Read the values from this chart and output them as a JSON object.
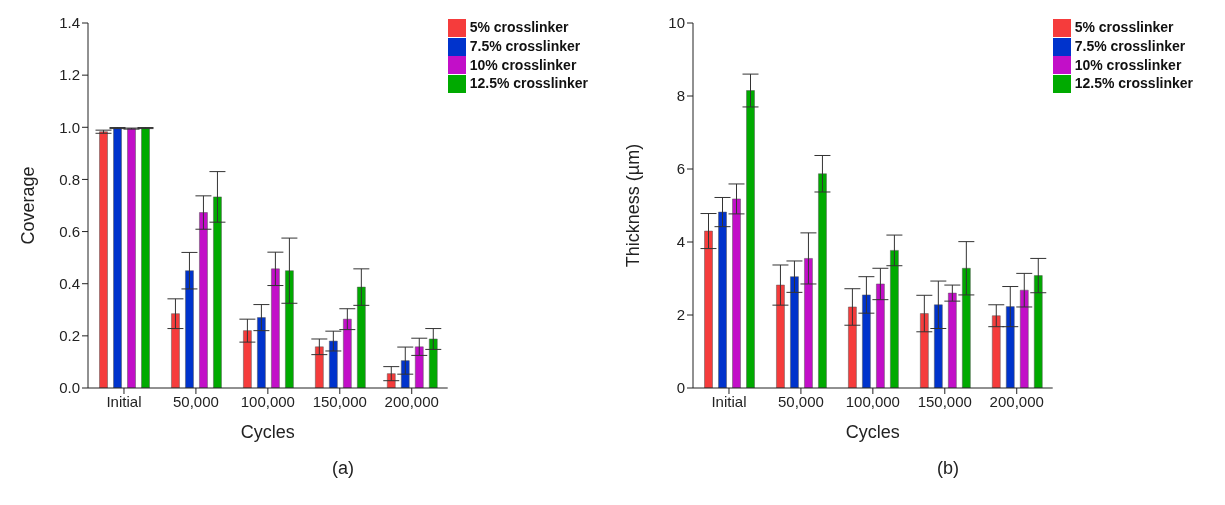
{
  "chart_data": [
    {
      "type": "bar",
      "xlabel": "Cycles",
      "ylabel": "Coverage",
      "annotations": [
        "(a)"
      ],
      "legend": "top right",
      "categories": [
        "Initial",
        "50,000",
        "100,000",
        "150,000",
        "200,000"
      ],
      "ylim": [
        0,
        1.4
      ],
      "yticks": [
        {
          "value": 0,
          "label": "0.0"
        },
        {
          "value": 0.2,
          "label": "0.2"
        },
        {
          "value": 0.4,
          "label": "0.4"
        },
        {
          "value": 0.6,
          "label": "0.6"
        },
        {
          "value": 0.8,
          "label": "0.8"
        },
        {
          "value": 1,
          "label": "1.0"
        },
        {
          "value": 1.2,
          "label": "1.2"
        },
        {
          "value": 1.4,
          "label": "1.4"
        }
      ],
      "series": [
        {
          "name": "5% crosslinker",
          "color": "#f53c3c",
          "values": [
            0.983,
            0.285,
            0.22,
            0.158,
            0.055
          ],
          "errors": [
            0.006,
            0.057,
            0.044,
            0.03,
            0.027
          ]
        },
        {
          "name": "7.5% crosslinker",
          "color": "#0033cc",
          "values": [
            0.997,
            0.45,
            0.27,
            0.18,
            0.105
          ],
          "errors": [
            0.002,
            0.07,
            0.05,
            0.038,
            0.052
          ]
        },
        {
          "name": "10% crosslinker",
          "color": "#c20fc8",
          "values": [
            0.995,
            0.673,
            0.457,
            0.264,
            0.158
          ],
          "errors": [
            0.002,
            0.064,
            0.064,
            0.04,
            0.033
          ]
        },
        {
          "name": "12.5% crosslinker",
          "color": "#00aa00",
          "values": [
            0.997,
            0.733,
            0.45,
            0.387,
            0.188
          ],
          "errors": [
            0.002,
            0.097,
            0.125,
            0.07,
            0.04
          ]
        }
      ]
    },
    {
      "type": "bar",
      "xlabel": "Cycles",
      "ylabel": "Thickness (µm)",
      "annotations": [
        "(b)"
      ],
      "legend": "top right",
      "categories": [
        "Initial",
        "50,000",
        "100,000",
        "150,000",
        "200,000"
      ],
      "ylim": [
        0,
        10
      ],
      "yticks": [
        0,
        2,
        4,
        6,
        8,
        10
      ],
      "series": [
        {
          "name": "5% crosslinker",
          "color": "#f53c3c",
          "values": [
            4.3,
            2.82,
            2.22,
            2.04,
            1.98
          ],
          "errors": [
            0.48,
            0.55,
            0.5,
            0.5,
            0.3
          ]
        },
        {
          "name": "7.5% crosslinker",
          "color": "#0033cc",
          "values": [
            4.82,
            3.05,
            2.55,
            2.28,
            2.23
          ],
          "errors": [
            0.4,
            0.43,
            0.5,
            0.65,
            0.55
          ]
        },
        {
          "name": "10% crosslinker",
          "color": "#c20fc8",
          "values": [
            5.18,
            3.55,
            2.85,
            2.6,
            2.68
          ],
          "errors": [
            0.41,
            0.7,
            0.43,
            0.22,
            0.46
          ]
        },
        {
          "name": "12.5% crosslinker",
          "color": "#00aa00",
          "values": [
            8.15,
            5.87,
            3.77,
            3.28,
            3.08
          ],
          "errors": [
            0.45,
            0.5,
            0.42,
            0.73,
            0.47
          ]
        }
      ]
    }
  ]
}
